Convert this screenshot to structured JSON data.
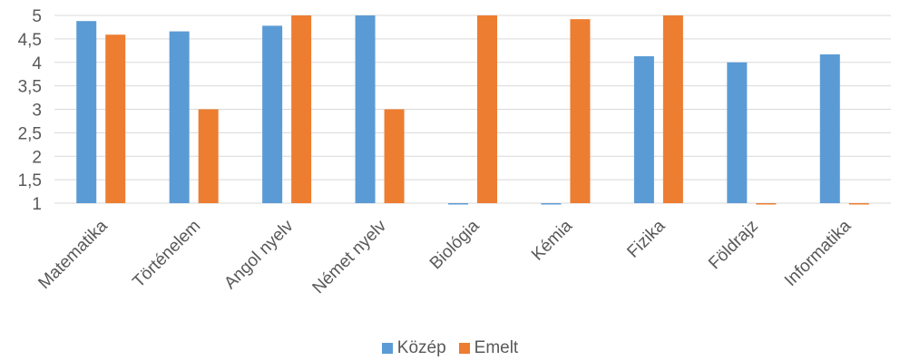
{
  "chart_data": {
    "type": "bar",
    "title": "",
    "xlabel": "",
    "ylabel": "",
    "categories": [
      "Matematika",
      "Történelem",
      "Angol nyelv",
      "Német nyelv",
      "Biológia",
      "Kémia",
      "Fizika",
      "Földrajz",
      "Informatika"
    ],
    "series": [
      {
        "name": "Közép",
        "color": "#5b9bd5",
        "values": [
          4.88,
          4.66,
          4.78,
          5.0,
          0.98,
          0.98,
          4.13,
          4.0,
          4.17
        ]
      },
      {
        "name": "Emelt",
        "color": "#ed7d31",
        "values": [
          4.59,
          3.0,
          5.0,
          3.0,
          5.0,
          4.92,
          5.0,
          0.98,
          0.98
        ]
      }
    ],
    "ylim": [
      1,
      5
    ],
    "yticks": [
      "1",
      "1,5",
      "2",
      "2,5",
      "3",
      "3,5",
      "4",
      "4,5",
      "5"
    ],
    "grid": true,
    "gridline_color": "#d9d9d9",
    "legend_position": "bottom"
  }
}
